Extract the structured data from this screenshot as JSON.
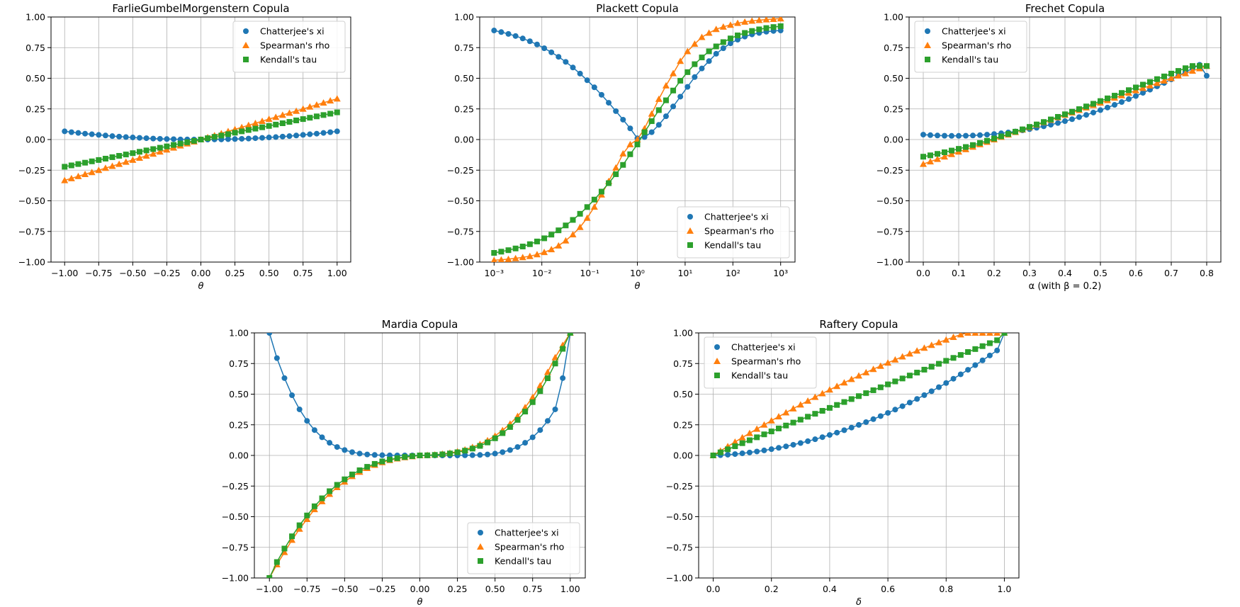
{
  "legend_entries": [
    "Chatterjee's xi",
    "Spearman's rho",
    "Kendall's tau"
  ],
  "colors": {
    "xi": "#1f77b4",
    "rho": "#ff7f0e",
    "tau": "#2ca02c",
    "grid": "#b0b0b0"
  },
  "chart_data": [
    {
      "type": "line",
      "title": "FarlieGumbelMorgenstern Copula",
      "xlabel": "θ",
      "ylabel": "",
      "xscale": "linear",
      "xlim": [
        -1.1,
        1.1
      ],
      "ylim": [
        -1.0,
        1.0
      ],
      "xticks": [
        -1.0,
        -0.75,
        -0.5,
        -0.25,
        0.0,
        0.25,
        0.5,
        0.75,
        1.0
      ],
      "xtick_labels": [
        "−1.00",
        "−0.75",
        "−0.50",
        "−0.25",
        "0.00",
        "0.25",
        "0.50",
        "0.75",
        "1.00"
      ],
      "yticks": [
        -1.0,
        -0.75,
        -0.5,
        -0.25,
        0.0,
        0.25,
        0.5,
        0.75,
        1.0
      ],
      "ytick_labels": [
        "−1.00",
        "−0.75",
        "−0.50",
        "−0.25",
        "0.00",
        "0.25",
        "0.50",
        "0.75",
        "1.00"
      ],
      "legend_location": "upper-right",
      "grid": true,
      "n_points": 41,
      "x_range": [
        -1.0,
        1.0
      ],
      "series": [
        {
          "name": "Chatterjee's xi",
          "marker": "circle",
          "values": [
            0.067,
            0.06,
            0.054,
            0.048,
            0.043,
            0.038,
            0.033,
            0.028,
            0.024,
            0.02,
            0.017,
            0.014,
            0.011,
            0.008,
            0.006,
            0.004,
            0.003,
            0.001,
            0.001,
            0.0,
            0.0,
            0.0,
            0.001,
            0.001,
            0.003,
            0.004,
            0.006,
            0.008,
            0.011,
            0.014,
            0.017,
            0.02,
            0.024,
            0.028,
            0.033,
            0.038,
            0.043,
            0.048,
            0.054,
            0.06,
            0.067
          ]
        },
        {
          "name": "Spearman's rho",
          "marker": "triangle",
          "values": [
            -0.333,
            -0.317,
            -0.3,
            -0.283,
            -0.267,
            -0.25,
            -0.233,
            -0.217,
            -0.2,
            -0.183,
            -0.167,
            -0.15,
            -0.133,
            -0.117,
            -0.1,
            -0.083,
            -0.067,
            -0.05,
            -0.033,
            -0.017,
            0.0,
            0.017,
            0.033,
            0.05,
            0.067,
            0.083,
            0.1,
            0.117,
            0.133,
            0.15,
            0.167,
            0.183,
            0.2,
            0.217,
            0.233,
            0.25,
            0.267,
            0.283,
            0.3,
            0.317,
            0.333
          ]
        },
        {
          "name": "Kendall's tau",
          "marker": "square",
          "values": [
            -0.222,
            -0.211,
            -0.2,
            -0.189,
            -0.178,
            -0.167,
            -0.156,
            -0.144,
            -0.133,
            -0.122,
            -0.111,
            -0.1,
            -0.089,
            -0.078,
            -0.067,
            -0.056,
            -0.044,
            -0.033,
            -0.022,
            -0.011,
            0.0,
            0.011,
            0.022,
            0.033,
            0.044,
            0.056,
            0.067,
            0.078,
            0.089,
            0.1,
            0.111,
            0.122,
            0.133,
            0.144,
            0.156,
            0.167,
            0.178,
            0.189,
            0.2,
            0.211,
            0.222
          ]
        }
      ]
    },
    {
      "type": "line",
      "title": "Plackett Copula",
      "xlabel": "θ",
      "ylabel": "",
      "xscale": "log",
      "xlim": [
        0.0005,
        2000
      ],
      "ylim": [
        -1.0,
        1.0
      ],
      "xticks": [
        0.001,
        0.01,
        0.1,
        1,
        10,
        100,
        1000
      ],
      "xtick_labels": [
        "10⁻³",
        "10⁻²",
        "10⁻¹",
        "10⁰",
        "10¹",
        "10²",
        "10³"
      ],
      "yticks": [
        -1.0,
        -0.75,
        -0.5,
        -0.25,
        0.0,
        0.25,
        0.5,
        0.75,
        1.0
      ],
      "ytick_labels": [
        "−1.00",
        "−0.75",
        "−0.50",
        "−0.25",
        "0.00",
        "0.25",
        "0.50",
        "0.75",
        "1.00"
      ],
      "legend_location": "lower-right",
      "grid": true,
      "n_points": 41,
      "x_range": [
        0.001,
        1000
      ],
      "series": [
        {
          "name": "Chatterjee's xi",
          "marker": "circle",
          "values": [
            0.89,
            0.877,
            0.862,
            0.845,
            0.825,
            0.802,
            0.776,
            0.745,
            0.712,
            0.675,
            0.634,
            0.588,
            0.538,
            0.484,
            0.426,
            0.365,
            0.3,
            0.232,
            0.162,
            0.091,
            0.01,
            0.02,
            0.06,
            0.12,
            0.19,
            0.27,
            0.35,
            0.43,
            0.51,
            0.58,
            0.64,
            0.7,
            0.745,
            0.785,
            0.815,
            0.84,
            0.858,
            0.87,
            0.88,
            0.886,
            0.89
          ]
        },
        {
          "name": "Spearman's rho",
          "marker": "triangle",
          "values": [
            -0.985,
            -0.981,
            -0.976,
            -0.97,
            -0.962,
            -0.952,
            -0.938,
            -0.92,
            -0.897,
            -0.866,
            -0.825,
            -0.775,
            -0.715,
            -0.64,
            -0.55,
            -0.45,
            -0.34,
            -0.23,
            -0.115,
            -0.04,
            0.0,
            0.09,
            0.21,
            0.33,
            0.44,
            0.54,
            0.64,
            0.72,
            0.78,
            0.835,
            0.87,
            0.9,
            0.92,
            0.935,
            0.95,
            0.96,
            0.968,
            0.974,
            0.979,
            0.983,
            0.987
          ]
        },
        {
          "name": "Kendall's tau",
          "marker": "square",
          "values": [
            -0.925,
            -0.915,
            -0.903,
            -0.889,
            -0.873,
            -0.854,
            -0.832,
            -0.806,
            -0.776,
            -0.741,
            -0.701,
            -0.656,
            -0.606,
            -0.551,
            -0.49,
            -0.425,
            -0.356,
            -0.283,
            -0.207,
            -0.12,
            -0.04,
            0.06,
            0.15,
            0.24,
            0.32,
            0.4,
            0.48,
            0.55,
            0.615,
            0.67,
            0.72,
            0.76,
            0.795,
            0.825,
            0.85,
            0.87,
            0.886,
            0.899,
            0.91,
            0.918,
            0.925
          ]
        }
      ]
    },
    {
      "type": "line",
      "title": "Frechet Copula",
      "xlabel": "α (with β = 0.2)",
      "ylabel": "",
      "xscale": "linear",
      "xlim": [
        -0.04,
        0.84
      ],
      "ylim": [
        -1.0,
        1.0
      ],
      "xticks": [
        0.0,
        0.1,
        0.2,
        0.3,
        0.4,
        0.5,
        0.6,
        0.7,
        0.8
      ],
      "xtick_labels": [
        "0.0",
        "0.1",
        "0.2",
        "0.3",
        "0.4",
        "0.5",
        "0.6",
        "0.7",
        "0.8"
      ],
      "yticks": [
        -1.0,
        -0.75,
        -0.5,
        -0.25,
        0.0,
        0.25,
        0.5,
        0.75,
        1.0
      ],
      "ytick_labels": [
        "−1.00",
        "−0.75",
        "−0.50",
        "−0.25",
        "0.00",
        "0.25",
        "0.50",
        "0.75",
        "1.00"
      ],
      "legend_location": "upper-left",
      "grid": true,
      "n_points": 41,
      "x_range": [
        0.0,
        0.8
      ],
      "series": [
        {
          "name": "Chatterjee's xi",
          "marker": "circle",
          "values": [
            0.04,
            0.036,
            0.033,
            0.031,
            0.03,
            0.03,
            0.031,
            0.033,
            0.036,
            0.04,
            0.045,
            0.051,
            0.058,
            0.066,
            0.075,
            0.085,
            0.096,
            0.108,
            0.121,
            0.135,
            0.15,
            0.166,
            0.183,
            0.201,
            0.22,
            0.24,
            0.261,
            0.283,
            0.306,
            0.33,
            0.355,
            0.381,
            0.407,
            0.434,
            0.462,
            0.491,
            0.52,
            0.55,
            0.58,
            0.61,
            0.52
          ]
        },
        {
          "name": "Spearman's rho",
          "marker": "triangle",
          "values": [
            -0.2,
            -0.18,
            -0.16,
            -0.14,
            -0.12,
            -0.1,
            -0.08,
            -0.06,
            -0.04,
            -0.02,
            0.0,
            0.02,
            0.04,
            0.06,
            0.08,
            0.1,
            0.12,
            0.14,
            0.16,
            0.18,
            0.2,
            0.22,
            0.24,
            0.26,
            0.28,
            0.3,
            0.32,
            0.34,
            0.36,
            0.38,
            0.4,
            0.42,
            0.44,
            0.46,
            0.48,
            0.5,
            0.52,
            0.54,
            0.56,
            0.58,
            0.6
          ]
        },
        {
          "name": "Kendall's tau",
          "marker": "square",
          "values": [
            -0.14,
            -0.129,
            -0.117,
            -0.104,
            -0.09,
            -0.076,
            -0.061,
            -0.045,
            -0.028,
            -0.01,
            0.008,
            0.026,
            0.045,
            0.064,
            0.083,
            0.103,
            0.123,
            0.143,
            0.164,
            0.185,
            0.206,
            0.227,
            0.248,
            0.27,
            0.292,
            0.314,
            0.336,
            0.358,
            0.38,
            0.403,
            0.425,
            0.448,
            0.47,
            0.493,
            0.515,
            0.538,
            0.56,
            0.582,
            0.6,
            0.6,
            0.6
          ]
        }
      ]
    },
    {
      "type": "line",
      "title": "Mardia Copula",
      "xlabel": "θ",
      "ylabel": "",
      "xscale": "linear",
      "xlim": [
        -1.1,
        1.1
      ],
      "ylim": [
        -1.0,
        1.0
      ],
      "xticks": [
        -1.0,
        -0.75,
        -0.5,
        -0.25,
        0.0,
        0.25,
        0.5,
        0.75,
        1.0
      ],
      "xtick_labels": [
        "−1.00",
        "−0.75",
        "−0.50",
        "−0.25",
        "0.00",
        "0.25",
        "0.50",
        "0.75",
        "1.00"
      ],
      "yticks": [
        -1.0,
        -0.75,
        -0.5,
        -0.25,
        0.0,
        0.25,
        0.5,
        0.75,
        1.0
      ],
      "ytick_labels": [
        "−1.00",
        "−0.75",
        "−0.50",
        "−0.25",
        "0.00",
        "0.25",
        "0.50",
        "0.75",
        "1.00"
      ],
      "legend_location": "lower-right",
      "grid": true,
      "n_points": 41,
      "x_range": [
        -1.0,
        1.0
      ],
      "series": [
        {
          "name": "Chatterjee's xi",
          "marker": "circle",
          "values": [
            1.0,
            0.794,
            0.631,
            0.491,
            0.376,
            0.282,
            0.207,
            0.148,
            0.103,
            0.069,
            0.044,
            0.027,
            0.015,
            0.008,
            0.004,
            0.002,
            0.001,
            0.0,
            0.0,
            0.0,
            0.0,
            0.0,
            0.0,
            0.0,
            0.0,
            0.0,
            0.001,
            0.002,
            0.004,
            0.008,
            0.015,
            0.027,
            0.044,
            0.069,
            0.103,
            0.148,
            0.207,
            0.282,
            0.376,
            0.631,
            1.0
          ]
        },
        {
          "name": "Spearman's rho",
          "marker": "triangle",
          "values": [
            -1.0,
            -0.89,
            -0.79,
            -0.69,
            -0.6,
            -0.52,
            -0.44,
            -0.375,
            -0.315,
            -0.26,
            -0.215,
            -0.17,
            -0.135,
            -0.104,
            -0.078,
            -0.056,
            -0.039,
            -0.026,
            -0.016,
            -0.008,
            0.0,
            0.002,
            0.006,
            0.012,
            0.02,
            0.032,
            0.047,
            0.067,
            0.092,
            0.122,
            0.16,
            0.205,
            0.258,
            0.32,
            0.392,
            0.475,
            0.57,
            0.68,
            0.8,
            0.9,
            1.0
          ]
        },
        {
          "name": "Kendall's tau",
          "marker": "square",
          "values": [
            -1.0,
            -0.87,
            -0.76,
            -0.66,
            -0.57,
            -0.49,
            -0.415,
            -0.35,
            -0.292,
            -0.24,
            -0.195,
            -0.155,
            -0.121,
            -0.093,
            -0.069,
            -0.049,
            -0.034,
            -0.022,
            -0.013,
            -0.006,
            0.0,
            0.001,
            0.004,
            0.009,
            0.016,
            0.026,
            0.039,
            0.056,
            0.078,
            0.106,
            0.14,
            0.182,
            0.232,
            0.29,
            0.358,
            0.435,
            0.525,
            0.63,
            0.75,
            0.87,
            1.0
          ]
        }
      ]
    },
    {
      "type": "line",
      "title": "Raftery Copula",
      "xlabel": "δ",
      "ylabel": "",
      "xscale": "linear",
      "xlim": [
        -0.05,
        1.05
      ],
      "ylim": [
        -1.0,
        1.0
      ],
      "xticks": [
        0.0,
        0.2,
        0.4,
        0.6,
        0.8,
        1.0
      ],
      "xtick_labels": [
        "0.0",
        "0.2",
        "0.4",
        "0.6",
        "0.8",
        "1.0"
      ],
      "yticks": [
        -1.0,
        -0.75,
        -0.5,
        -0.25,
        0.0,
        0.25,
        0.5,
        0.75,
        1.0
      ],
      "ytick_labels": [
        "−1.00",
        "−0.75",
        "−0.50",
        "−0.25",
        "0.00",
        "0.25",
        "0.50",
        "0.75",
        "1.00"
      ],
      "legend_location": "upper-left",
      "grid": true,
      "n_points": 41,
      "x_range": [
        0.0,
        1.0
      ],
      "series": [
        {
          "name": "Chatterjee's xi",
          "marker": "circle",
          "values": [
            0.0,
            0.002,
            0.006,
            0.011,
            0.017,
            0.024,
            0.032,
            0.041,
            0.051,
            0.062,
            0.074,
            0.087,
            0.101,
            0.116,
            0.132,
            0.149,
            0.167,
            0.186,
            0.206,
            0.227,
            0.249,
            0.272,
            0.296,
            0.321,
            0.347,
            0.374,
            0.402,
            0.431,
            0.461,
            0.492,
            0.524,
            0.557,
            0.591,
            0.626,
            0.662,
            0.699,
            0.737,
            0.776,
            0.816,
            0.857,
            1.0
          ]
        },
        {
          "name": "Spearman's rho",
          "marker": "triangle",
          "values": [
            0.0,
            0.037,
            0.074,
            0.11,
            0.146,
            0.181,
            0.216,
            0.25,
            0.284,
            0.317,
            0.35,
            0.382,
            0.414,
            0.445,
            0.476,
            0.506,
            0.536,
            0.565,
            0.594,
            0.622,
            0.65,
            0.677,
            0.704,
            0.73,
            0.756,
            0.781,
            0.806,
            0.83,
            0.854,
            0.877,
            0.9,
            0.922,
            0.944,
            0.965,
            0.986,
            1.0,
            1.0,
            1.0,
            1.0,
            1.0,
            1.0
          ]
        },
        {
          "name": "Kendall's tau",
          "marker": "square",
          "values": [
            0.0,
            0.025,
            0.05,
            0.075,
            0.1,
            0.124,
            0.148,
            0.172,
            0.196,
            0.22,
            0.244,
            0.268,
            0.292,
            0.316,
            0.34,
            0.364,
            0.388,
            0.412,
            0.436,
            0.46,
            0.484,
            0.508,
            0.532,
            0.556,
            0.58,
            0.604,
            0.628,
            0.652,
            0.676,
            0.7,
            0.724,
            0.748,
            0.772,
            0.796,
            0.82,
            0.844,
            0.868,
            0.892,
            0.916,
            0.94,
            1.0
          ]
        }
      ]
    }
  ]
}
